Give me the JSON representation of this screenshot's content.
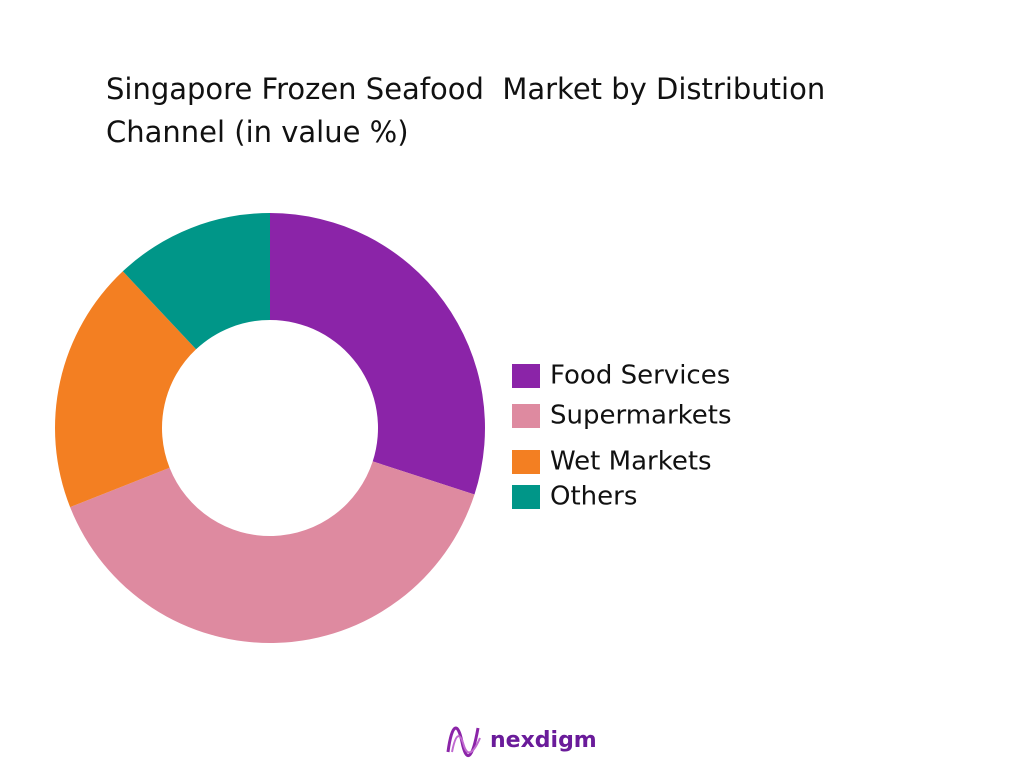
{
  "chart_data": {
    "type": "donut",
    "title": "Singapore Frozen Seafood  Market by Distribution Channel (in value %)",
    "categories": [
      "Food Services",
      "Supermarkets",
      "Wet Markets",
      "Others"
    ],
    "values": [
      30,
      39,
      19,
      12
    ],
    "colors": [
      "#8b24a8",
      "#de8aa0",
      "#f37f22",
      "#009688"
    ],
    "legend": "right"
  },
  "brand": "nexdigm"
}
